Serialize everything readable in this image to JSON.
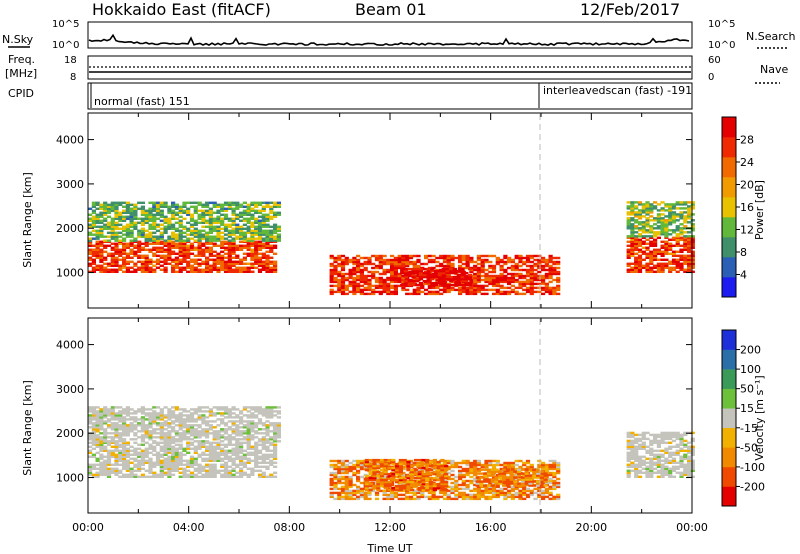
{
  "header": {
    "title": "Hokkaido East (fitACF)",
    "beam": "Beam 01",
    "date": "12/Feb/2017"
  },
  "status_panels": {
    "nsky": {
      "label": "N.Sky",
      "ticks": [
        "10^5",
        "10^0"
      ]
    },
    "nsearch": {
      "label": "N.Search",
      "ticks": [
        "10^5",
        "10^0"
      ]
    },
    "freq": {
      "label_line1": "Freq.",
      "label_line2": "[MHz]",
      "ticks": [
        "18",
        "8"
      ]
    },
    "nave": {
      "label": "Nave",
      "ticks": [
        "60",
        "0"
      ]
    },
    "cpid": {
      "label": "CPID",
      "segments": [
        "normal (fast) 151",
        "interleavedscan (fast) -191"
      ]
    }
  },
  "chart_data": [
    {
      "type": "heatmap",
      "name_key": "power",
      "ylabel": "Slant Range [km]",
      "yticks": [
        1000,
        2000,
        3000,
        4000
      ],
      "ylim": [
        200,
        4600
      ],
      "xlim_hours": [
        0,
        24
      ],
      "colorbar_label": "Power [dB]",
      "colorbar_ticks": [
        "4",
        "8",
        "12",
        "16",
        "20",
        "24",
        "28"
      ],
      "colorbar_colors": [
        "#1c1cf0",
        "#2a5fb5",
        "#3f8f6a",
        "#62b83a",
        "#e8c200",
        "#f29b00",
        "#f06a00",
        "#ef2a00",
        "#e40000"
      ],
      "regions": [
        {
          "t0": 0.0,
          "t1": 7.4,
          "r0": 1000,
          "r1": 1700,
          "level": 26
        },
        {
          "t0": 0.0,
          "t1": 7.6,
          "r0": 1700,
          "r1": 2600,
          "level": 12
        },
        {
          "t0": 9.6,
          "t1": 18.6,
          "r0": 500,
          "r1": 1400,
          "level": 27
        },
        {
          "t0": 12.4,
          "t1": 15.2,
          "r0": 700,
          "r1": 1100,
          "level": 30
        },
        {
          "t0": 21.4,
          "t1": 24.0,
          "r0": 1000,
          "r1": 1800,
          "level": 26
        },
        {
          "t0": 21.4,
          "t1": 24.0,
          "r0": 1800,
          "r1": 2600,
          "level": 13
        }
      ]
    },
    {
      "type": "heatmap",
      "name_key": "velocity",
      "ylabel": "Slant Range [km]",
      "yticks": [
        1000,
        2000,
        3000,
        4000
      ],
      "ylim": [
        200,
        4600
      ],
      "xlim_hours": [
        0,
        24
      ],
      "xticks": [
        "00:00",
        "04:00",
        "08:00",
        "12:00",
        "16:00",
        "20:00",
        "00:00"
      ],
      "xlabel": "Time UT",
      "colorbar_label": "Velocity [m s⁻¹]",
      "colorbar_ticks": [
        "-200",
        "-100",
        "-50",
        "-15",
        "15",
        "50",
        "100",
        "200"
      ],
      "colorbar_colors": [
        "#e40000",
        "#ef4a00",
        "#f28a00",
        "#f2b000",
        "#c4c4bc",
        "#6cc03a",
        "#3a9a58",
        "#2a6fa8",
        "#1c2fd8"
      ],
      "regions": [
        {
          "t0": 0.0,
          "t1": 7.4,
          "r0": 1000,
          "r1": 1800,
          "level": 0
        },
        {
          "t0": 0.0,
          "t1": 7.6,
          "r0": 1800,
          "r1": 2600,
          "level": 0
        },
        {
          "t0": 9.6,
          "t1": 18.6,
          "r0": 500,
          "r1": 1400,
          "level": -60
        },
        {
          "t0": 11.0,
          "t1": 14.2,
          "r0": 700,
          "r1": 1400,
          "level": -90
        },
        {
          "t0": 15.4,
          "t1": 18.2,
          "r0": 800,
          "r1": 1200,
          "level": -70
        },
        {
          "t0": 21.4,
          "t1": 24.0,
          "r0": 1000,
          "r1": 2000,
          "level": 0
        }
      ]
    }
  ]
}
